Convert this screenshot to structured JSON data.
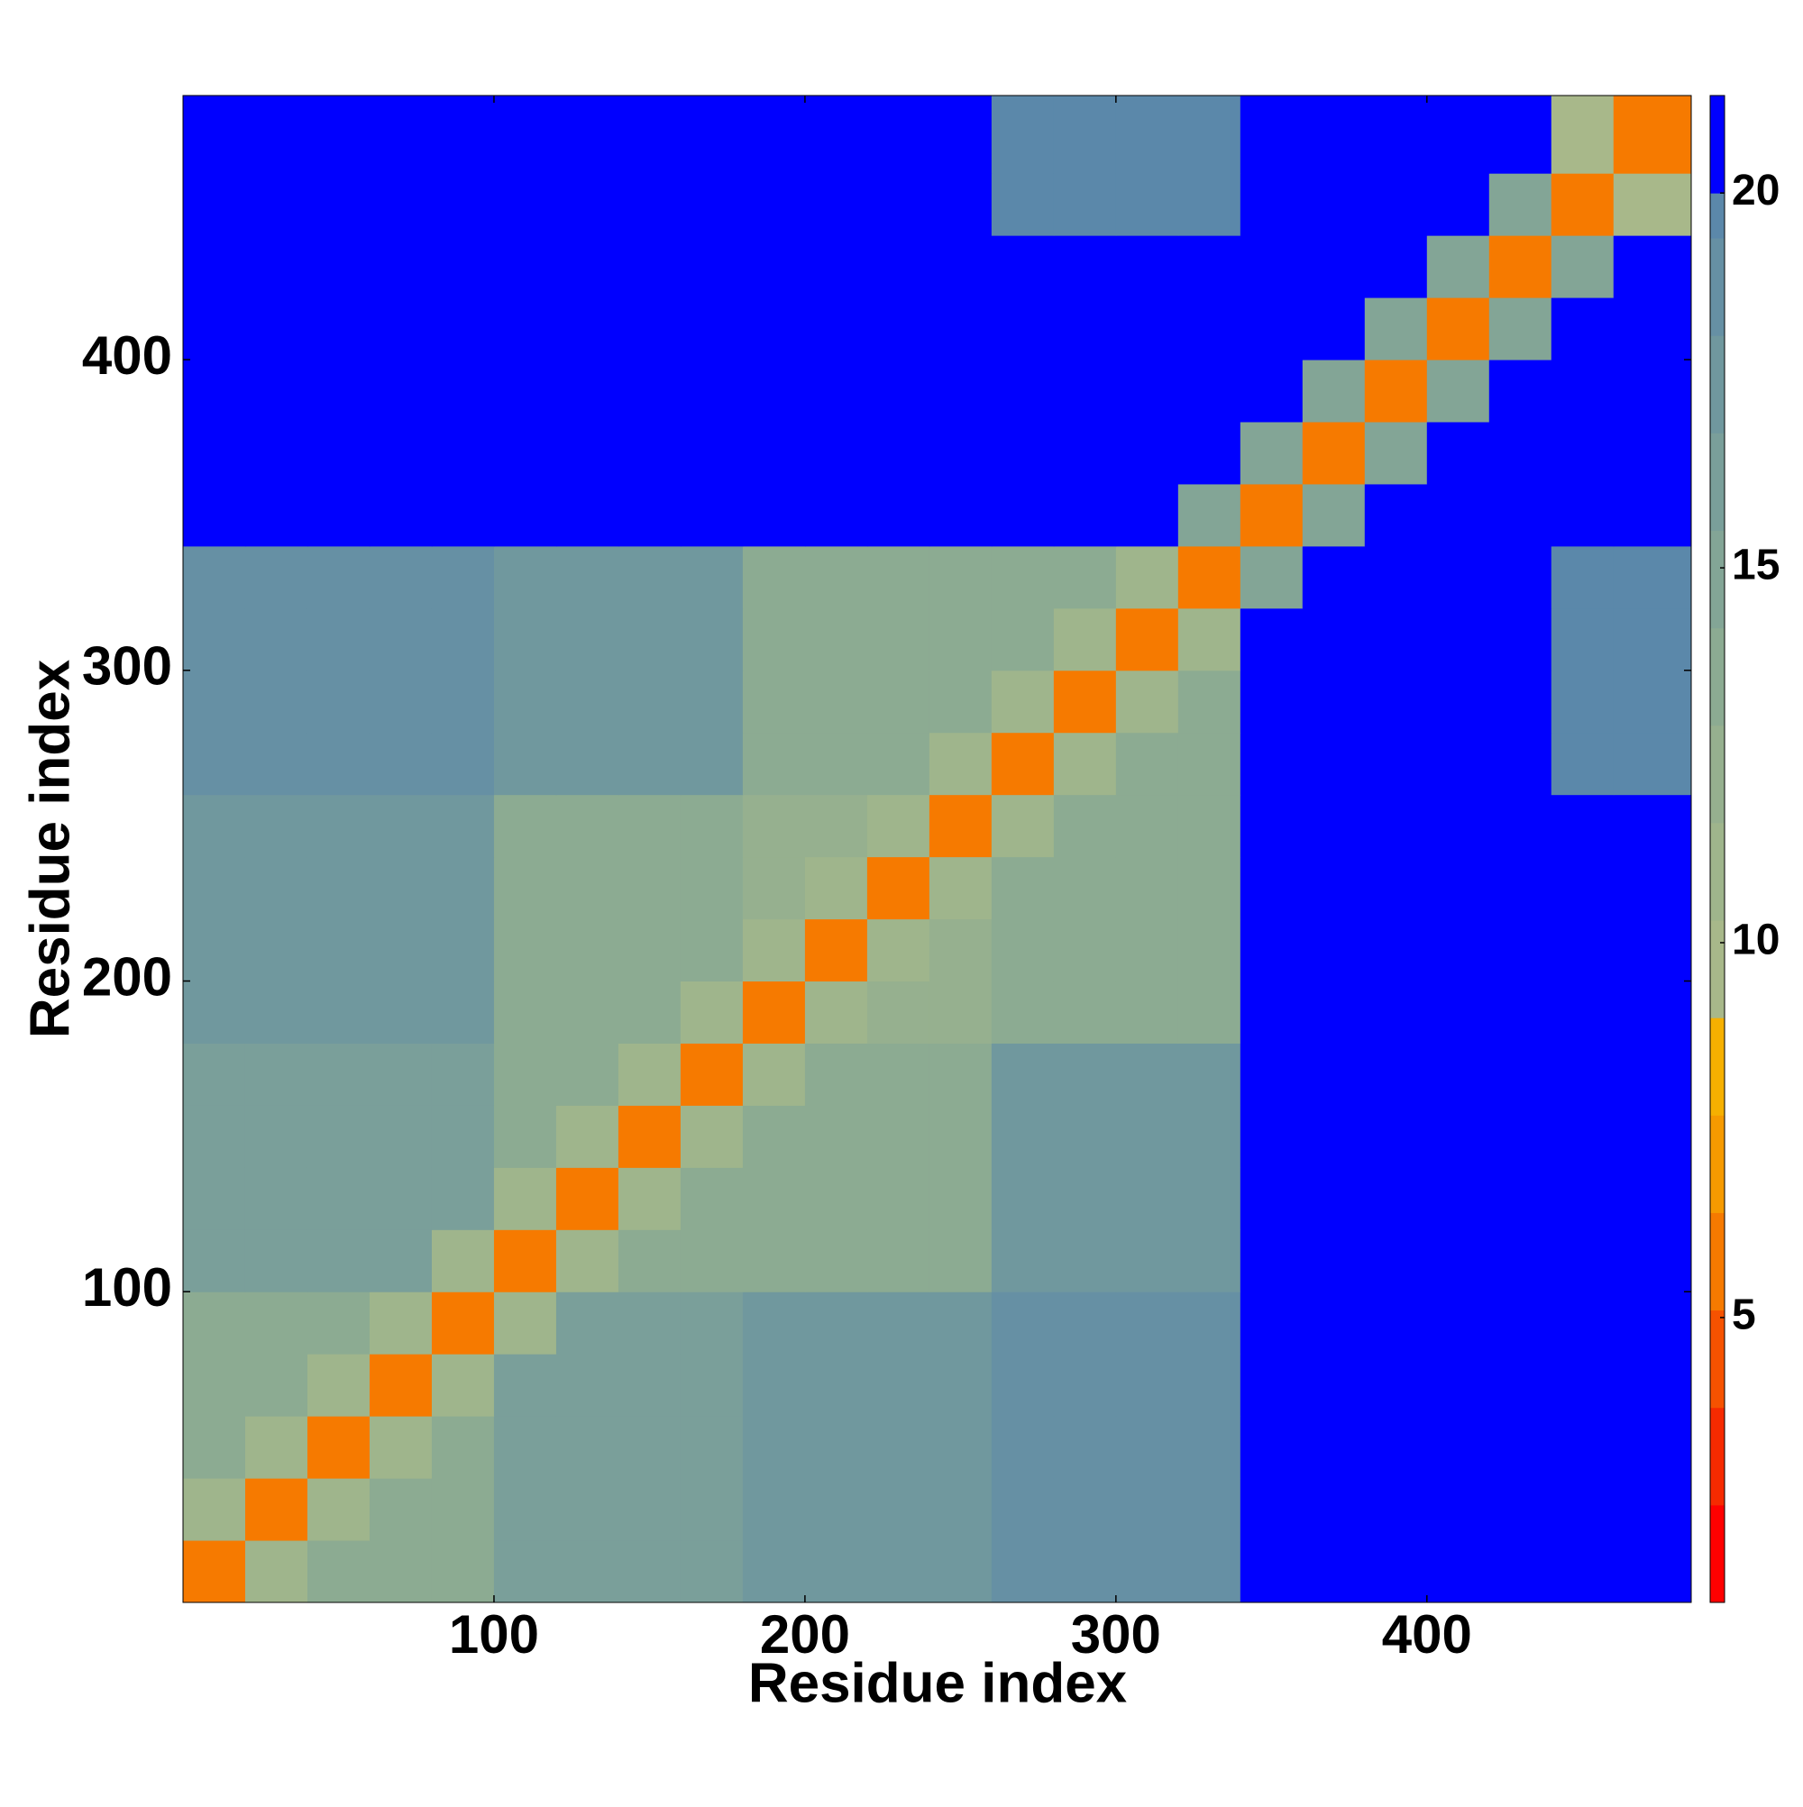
{
  "chart_data": {
    "type": "heatmap",
    "x_label": "Residue index",
    "y_label": "Residue index",
    "x_edges": [
      0,
      20,
      40,
      60,
      80,
      100,
      120,
      140,
      160,
      180,
      200,
      220,
      240,
      260,
      280,
      300,
      320,
      340,
      360,
      380,
      400,
      420,
      440,
      460,
      485
    ],
    "y_edges": [
      0,
      20,
      40,
      60,
      80,
      100,
      120,
      140,
      160,
      180,
      200,
      220,
      240,
      260,
      280,
      300,
      320,
      340,
      360,
      380,
      400,
      420,
      440,
      460,
      485
    ],
    "z": [
      [
        6,
        11,
        13,
        13,
        13,
        16,
        16,
        16,
        16,
        18,
        18,
        18,
        18,
        19,
        19,
        19,
        19,
        21,
        21,
        21,
        21,
        21,
        21,
        21
      ],
      [
        11,
        6,
        11,
        13,
        13,
        16,
        16,
        16,
        16,
        18,
        18,
        18,
        18,
        19,
        19,
        19,
        19,
        21,
        21,
        21,
        21,
        21,
        21,
        21
      ],
      [
        13,
        11,
        6,
        11,
        13,
        16,
        16,
        16,
        16,
        18,
        18,
        18,
        18,
        19,
        19,
        19,
        19,
        21,
        21,
        21,
        21,
        21,
        21,
        21
      ],
      [
        13,
        13,
        11,
        6,
        11,
        16,
        16,
        16,
        16,
        18,
        18,
        18,
        18,
        19,
        19,
        19,
        19,
        21,
        21,
        21,
        21,
        21,
        21,
        21
      ],
      [
        13,
        13,
        13,
        11,
        6,
        11,
        16,
        16,
        16,
        18,
        18,
        18,
        18,
        19,
        19,
        19,
        19,
        21,
        21,
        21,
        21,
        21,
        21,
        21
      ],
      [
        16,
        16,
        16,
        16,
        11,
        6,
        11,
        13,
        13,
        14,
        14,
        14,
        14,
        18,
        18,
        18,
        18,
        21,
        21,
        21,
        21,
        21,
        21,
        21
      ],
      [
        16,
        16,
        16,
        16,
        16,
        11,
        6,
        11,
        13,
        14,
        14,
        14,
        14,
        18,
        18,
        18,
        18,
        21,
        21,
        21,
        21,
        21,
        21,
        21
      ],
      [
        16,
        16,
        16,
        16,
        16,
        13,
        11,
        6,
        11,
        14,
        14,
        14,
        14,
        18,
        18,
        18,
        18,
        21,
        21,
        21,
        21,
        21,
        21,
        21
      ],
      [
        16,
        16,
        16,
        16,
        16,
        13,
        13,
        11,
        6,
        11,
        14,
        14,
        14,
        18,
        18,
        18,
        18,
        21,
        21,
        21,
        21,
        21,
        21,
        21
      ],
      [
        18,
        18,
        18,
        18,
        18,
        14,
        14,
        14,
        11,
        6,
        11,
        12,
        12,
        14,
        14,
        14,
        14,
        21,
        21,
        21,
        21,
        21,
        21,
        21
      ],
      [
        18,
        18,
        18,
        18,
        18,
        14,
        14,
        14,
        14,
        11,
        6,
        11,
        12,
        14,
        14,
        14,
        14,
        21,
        21,
        21,
        21,
        21,
        21,
        21
      ],
      [
        18,
        18,
        18,
        18,
        18,
        14,
        14,
        14,
        14,
        12,
        11,
        6,
        11,
        14,
        14,
        14,
        14,
        21,
        21,
        21,
        21,
        21,
        21,
        21
      ],
      [
        18,
        18,
        18,
        18,
        18,
        14,
        14,
        14,
        14,
        12,
        12,
        11,
        6,
        11,
        14,
        14,
        14,
        21,
        21,
        21,
        21,
        21,
        21,
        21
      ],
      [
        19,
        19,
        19,
        19,
        19,
        18,
        18,
        18,
        18,
        14,
        14,
        14,
        11,
        6,
        11,
        13,
        13,
        21,
        21,
        21,
        21,
        21,
        20,
        20
      ],
      [
        19,
        19,
        19,
        19,
        19,
        18,
        18,
        18,
        18,
        14,
        14,
        14,
        14,
        11,
        6,
        11,
        13,
        21,
        21,
        21,
        21,
        21,
        20,
        20
      ],
      [
        19,
        19,
        19,
        19,
        19,
        18,
        18,
        18,
        18,
        14,
        14,
        14,
        14,
        13,
        11,
        6,
        11,
        21,
        21,
        21,
        21,
        21,
        20,
        20
      ],
      [
        19,
        19,
        19,
        19,
        19,
        18,
        18,
        18,
        18,
        14,
        14,
        14,
        14,
        13,
        13,
        11,
        6,
        15,
        21,
        21,
        21,
        21,
        20,
        20
      ],
      [
        21,
        21,
        21,
        21,
        21,
        21,
        21,
        21,
        21,
        21,
        21,
        21,
        21,
        21,
        21,
        21,
        15,
        6,
        15,
        21,
        21,
        21,
        21,
        21
      ],
      [
        21,
        21,
        21,
        21,
        21,
        21,
        21,
        21,
        21,
        21,
        21,
        21,
        21,
        21,
        21,
        21,
        21,
        15,
        6,
        15,
        21,
        21,
        21,
        21
      ],
      [
        21,
        21,
        21,
        21,
        21,
        21,
        21,
        21,
        21,
        21,
        21,
        21,
        21,
        21,
        21,
        21,
        21,
        21,
        15,
        6,
        15,
        21,
        21,
        21
      ],
      [
        21,
        21,
        21,
        21,
        21,
        21,
        21,
        21,
        21,
        21,
        21,
        21,
        21,
        21,
        21,
        21,
        21,
        21,
        21,
        15,
        6,
        15,
        21,
        21
      ],
      [
        21,
        21,
        21,
        21,
        21,
        21,
        21,
        21,
        21,
        21,
        21,
        21,
        21,
        21,
        21,
        21,
        21,
        21,
        21,
        21,
        15,
        6,
        15,
        21
      ],
      [
        21,
        21,
        21,
        21,
        21,
        21,
        21,
        21,
        21,
        21,
        21,
        21,
        21,
        20,
        20,
        20,
        20,
        21,
        21,
        21,
        21,
        15,
        6,
        10
      ],
      [
        21,
        21,
        21,
        21,
        21,
        21,
        21,
        21,
        21,
        21,
        21,
        21,
        21,
        20,
        20,
        20,
        20,
        21,
        21,
        21,
        21,
        21,
        10,
        6
      ]
    ],
    "xlim": [
      0,
      485
    ],
    "ylim": [
      0,
      485
    ],
    "xticks": [
      100,
      200,
      300,
      400
    ],
    "yticks": [
      100,
      200,
      300,
      400
    ],
    "colorbar": {
      "ticks": [
        5,
        10,
        15,
        20
      ],
      "levels": [
        1.2,
        2.5,
        3.8,
        5.1,
        6.4,
        7.7,
        9,
        10.3,
        11.6,
        12.9,
        14.2,
        15.5,
        16.8,
        18.1,
        19.4,
        20,
        21.3
      ],
      "colors": [
        "#ff0000",
        "#f62a00",
        "#f65200",
        "#f67a00",
        "#f69a00",
        "#f6b000",
        "#a8b88a",
        "#9fb58c",
        "#96b08f",
        "#8cab92",
        "#83a596",
        "#7a9f9a",
        "#70989e",
        "#6690a4",
        "#5b88aa",
        "#0000ff"
      ]
    }
  }
}
